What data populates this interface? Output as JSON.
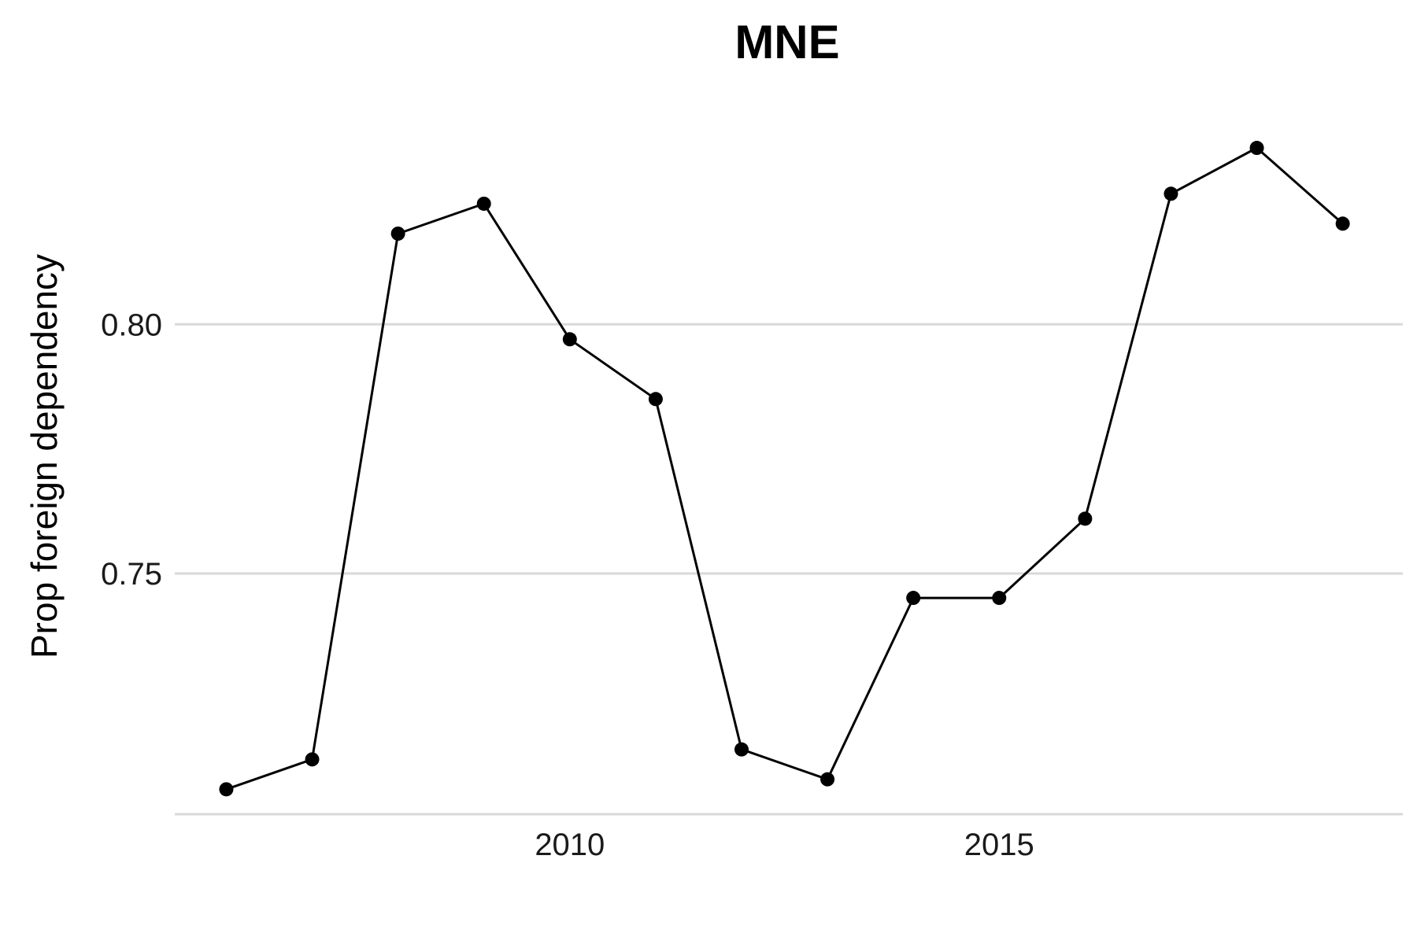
{
  "chart_data": {
    "type": "line",
    "title": "MNE",
    "xlabel": "",
    "ylabel": "Prop foreign dependency",
    "xlim": [
      2005.4,
      2019.7
    ],
    "ylim": [
      0.7017,
      0.8414
    ],
    "x_ticks": [
      2010,
      2015
    ],
    "x_tick_labels": [
      "2010",
      "2015"
    ],
    "y_ticks": [
      0.75,
      0.8
    ],
    "y_tick_labels": [
      "0.75",
      "0.80"
    ],
    "grid": true,
    "legend": "none",
    "line_color": "#000000",
    "grid_color": "#d9d9d9",
    "x": [
      2006,
      2007,
      2008,
      2009,
      2010,
      2011,
      2012,
      2013,
      2014,
      2015,
      2016,
      2017,
      2018,
      2019
    ],
    "y": [
      0.7067,
      0.7127,
      0.8182,
      0.8242,
      0.797,
      0.785,
      0.7147,
      0.7087,
      0.7451,
      0.7451,
      0.761,
      0.8262,
      0.8354,
      0.8202
    ]
  }
}
